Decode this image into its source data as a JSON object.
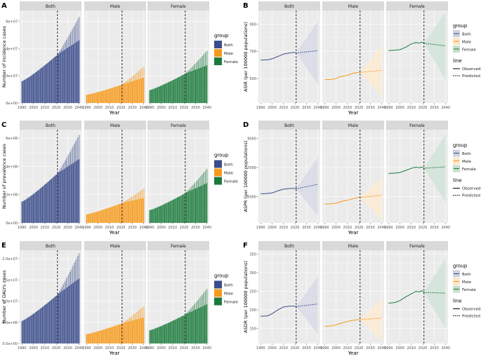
{
  "chart_data": {
    "type": "composite",
    "facets": [
      "Both",
      "Male",
      "Female"
    ],
    "x_ticks": [
      1990,
      2000,
      2010,
      2020,
      2030,
      2040
    ],
    "xlabel": "Year",
    "split_year": 2021,
    "colors": {
      "Both": "#3b4d8a",
      "Male": "#f59a1e",
      "Female": "#1b7a3c"
    },
    "bar_legend": {
      "title": "group",
      "items": [
        "Both",
        "Male",
        "Female"
      ]
    },
    "line_legend": {
      "group_title": "group",
      "group_items": [
        "Both",
        "Male",
        "Female"
      ],
      "line_title": "line",
      "line_items": [
        "Observed",
        "Predicted"
      ]
    },
    "panels": [
      {
        "label": "A",
        "kind": "bar",
        "ylabel": "Number of incidence cases",
        "ylim": [
          0,
          68000000
        ],
        "yticks": [
          {
            "v": 0,
            "t": "0e+00"
          },
          {
            "v": 20000000,
            "t": "2e+07"
          },
          {
            "v": 40000000,
            "t": "4e+07"
          },
          {
            "v": 60000000,
            "t": "6e+07"
          }
        ],
        "series": {
          "Both": {
            "start": 16000000,
            "obs_end": 35500000,
            "pred_upper": 63000000,
            "pred_lower": 46000000
          },
          "Male": {
            "start": 6000000,
            "obs_end": 13500000,
            "pred_upper": 26500000,
            "pred_lower": 18500000
          },
          "Female": {
            "start": 9500000,
            "obs_end": 21500000,
            "pred_upper": 38000000,
            "pred_lower": 27500000
          }
        }
      },
      {
        "label": "B",
        "kind": "line",
        "ylabel": "ASIR (per 100000 populations)",
        "ylim": [
          320,
          1000
        ],
        "yticks": [
          {
            "v": 500,
            "t": "500"
          },
          {
            "v": 700,
            "t": "700"
          },
          {
            "v": 900,
            "t": "900"
          }
        ],
        "series": {
          "Both": {
            "obs": [
              [
                1990,
                635
              ],
              [
                1996,
                638
              ],
              [
                2000,
                645
              ],
              [
                2005,
                662
              ],
              [
                2010,
                680
              ],
              [
                2015,
                688
              ],
              [
                2019,
                693
              ],
              [
                2021,
                688
              ]
            ],
            "pred_end": 705,
            "band_upper": 920,
            "band_lower": 455
          },
          "Male": {
            "obs": [
              [
                1990,
                492
              ],
              [
                1995,
                493
              ],
              [
                2000,
                500
              ],
              [
                2003,
                512
              ],
              [
                2008,
                520
              ],
              [
                2012,
                530
              ],
              [
                2016,
                540
              ],
              [
                2019,
                545
              ],
              [
                2021,
                545
              ]
            ],
            "pred_end": 560,
            "band_upper": 740,
            "band_lower": 370
          },
          "Female": {
            "obs": [
              [
                1990,
                705
              ],
              [
                1995,
                708
              ],
              [
                2000,
                712
              ],
              [
                2005,
                730
              ],
              [
                2010,
                755
              ],
              [
                2014,
                765
              ],
              [
                2017,
                760
              ],
              [
                2019,
                768
              ],
              [
                2021,
                760
              ]
            ],
            "pred_end": 740,
            "band_upper": 990,
            "band_lower": 490
          }
        }
      },
      {
        "label": "C",
        "kind": "bar",
        "ylabel": "Number of prevalence cases",
        "ylim": [
          0,
          660000000
        ],
        "yticks": [
          {
            "v": 0,
            "t": "0e+00"
          },
          {
            "v": 200000000,
            "t": "2e+08"
          },
          {
            "v": 400000000,
            "t": "4e+08"
          },
          {
            "v": 600000000,
            "t": "6e+08"
          }
        ],
        "series": {
          "Both": {
            "start": 150000000,
            "obs_end": 350000000,
            "pred_upper": 620000000,
            "pred_lower": 450000000
          },
          "Male": {
            "start": 60000000,
            "obs_end": 140000000,
            "pred_upper": 240000000,
            "pred_lower": 175000000
          },
          "Female": {
            "start": 90000000,
            "obs_end": 210000000,
            "pred_upper": 380000000,
            "pred_lower": 280000000
          }
        }
      },
      {
        "label": "D",
        "kind": "line",
        "ylabel": "ASPR (per 100000 populations)",
        "ylim": [
          3200,
          9600
        ],
        "yticks": [
          {
            "v": 5000,
            "t": "5000"
          },
          {
            "v": 7000,
            "t": "7000"
          },
          {
            "v": 9000,
            "t": "9000"
          }
        ],
        "series": {
          "Both": {
            "obs": [
              [
                1990,
                5200
              ],
              [
                1996,
                5220
              ],
              [
                2000,
                5260
              ],
              [
                2005,
                5400
              ],
              [
                2010,
                5520
              ],
              [
                2015,
                5560
              ],
              [
                2019,
                5570
              ],
              [
                2021,
                5540
              ]
            ],
            "pred_end": 5850,
            "band_upper": 7700,
            "band_lower": 3700
          },
          "Male": {
            "obs": [
              [
                1990,
                4500
              ],
              [
                1996,
                4510
              ],
              [
                2000,
                4560
              ],
              [
                2005,
                4680
              ],
              [
                2010,
                4760
              ],
              [
                2015,
                4870
              ],
              [
                2019,
                4940
              ],
              [
                2021,
                4950
              ]
            ],
            "pred_end": 5100,
            "band_upper": 6400,
            "band_lower": 3400
          },
          "Female": {
            "obs": [
              [
                1990,
                6600
              ],
              [
                1996,
                6620
              ],
              [
                2000,
                6660
              ],
              [
                2005,
                6800
              ],
              [
                2010,
                6950
              ],
              [
                2014,
                7030
              ],
              [
                2017,
                6980
              ],
              [
                2019,
                7040
              ],
              [
                2021,
                6950
              ]
            ],
            "pred_end": 7050,
            "band_upper": 9300,
            "band_lower": 4600
          }
        }
      },
      {
        "label": "E",
        "kind": "bar",
        "ylabel": "Number of DALYs cases",
        "ylim": [
          0,
          22000000
        ],
        "yticks": [
          {
            "v": 0,
            "t": "0.0e+00"
          },
          {
            "v": 5000000,
            "t": "5.0e+06"
          },
          {
            "v": 10000000,
            "t": "1.0e+07"
          },
          {
            "v": 15000000,
            "t": "1.5e+07"
          },
          {
            "v": 20000000,
            "t": "2.0e+07"
          }
        ],
        "series": {
          "Both": {
            "start": 5300000,
            "obs_end": 11500000,
            "pred_upper": 21200000,
            "pred_lower": 15300000
          },
          "Male": {
            "start": 2200000,
            "obs_end": 4700000,
            "pred_upper": 8700000,
            "pred_lower": 6100000
          },
          "Female": {
            "start": 3100000,
            "obs_end": 6800000,
            "pred_upper": 12800000,
            "pred_lower": 9200000
          }
        }
      },
      {
        "label": "F",
        "kind": "line",
        "ylabel": "ASDR (per 100000 populations)",
        "ylim": [
          110,
          360
        ],
        "yticks": [
          {
            "v": 150,
            "t": "150"
          },
          {
            "v": 200,
            "t": "200"
          },
          {
            "v": 250,
            "t": "250"
          },
          {
            "v": 300,
            "t": "300"
          },
          {
            "v": 350,
            "t": "350"
          }
        ],
        "series": {
          "Both": {
            "obs": [
              [
                1990,
                183
              ],
              [
                1996,
                184
              ],
              [
                2000,
                190
              ],
              [
                2005,
                200
              ],
              [
                2010,
                208
              ],
              [
                2015,
                210
              ],
              [
                2019,
                210
              ],
              [
                2021,
                209
              ]
            ],
            "pred_end": 216,
            "band_upper": 290,
            "band_lower": 135
          },
          "Male": {
            "obs": [
              [
                1990,
                156
              ],
              [
                1996,
                157
              ],
              [
                2000,
                160
              ],
              [
                2005,
                165
              ],
              [
                2010,
                169
              ],
              [
                2015,
                172
              ],
              [
                2019,
                174
              ],
              [
                2021,
                174
              ]
            ],
            "pred_end": 178,
            "band_upper": 230,
            "band_lower": 118
          },
          "Female": {
            "obs": [
              [
                1990,
                218
              ],
              [
                1996,
                220
              ],
              [
                2000,
                225
              ],
              [
                2005,
                235
              ],
              [
                2010,
                243
              ],
              [
                2014,
                250
              ],
              [
                2017,
                248
              ],
              [
                2019,
                252
              ],
              [
                2021,
                247
              ]
            ],
            "pred_end": 245,
            "band_upper": 340,
            "band_lower": 150
          }
        }
      }
    ]
  }
}
